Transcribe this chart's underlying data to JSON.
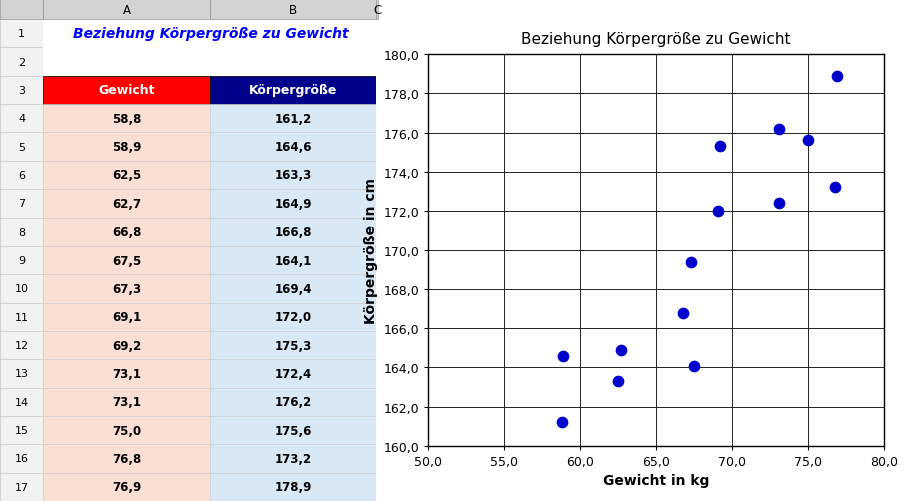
{
  "title_text": "Beziehung Körpergröße zu Gewicht",
  "title_color": "#0000FF",
  "col_a_header": "Gewicht",
  "col_b_header": "Körpergröße",
  "col_a_bg": "#FF0000",
  "col_b_bg": "#00008B",
  "row_a_bg": "#FAE0D4",
  "row_b_bg": "#D9E8F5",
  "gewicht": [
    58.8,
    58.9,
    62.5,
    62.7,
    66.8,
    67.5,
    67.3,
    69.1,
    69.2,
    73.1,
    73.1,
    75.0,
    76.8,
    76.9
  ],
  "koerpergroesse": [
    161.2,
    164.6,
    163.3,
    164.9,
    166.8,
    164.1,
    169.4,
    172.0,
    175.3,
    172.4,
    176.2,
    175.6,
    173.2,
    178.9
  ],
  "chart_title": "Beziehung Körpergröße zu Gewicht",
  "xlabel": "Gewicht in kg",
  "ylabel": "Körpergröße in cm",
  "xlim": [
    50.0,
    80.0
  ],
  "ylim": [
    160.0,
    180.0
  ],
  "xticks": [
    50.0,
    55.0,
    60.0,
    65.0,
    70.0,
    75.0,
    80.0
  ],
  "yticks": [
    160.0,
    162.0,
    164.0,
    166.0,
    168.0,
    170.0,
    172.0,
    174.0,
    176.0,
    178.0,
    180.0
  ],
  "dot_color": "#0000CD",
  "dot_size": 55,
  "col_header_letters": [
    "A",
    "B",
    "C"
  ],
  "col_header_bg": "#D3D3D3",
  "row_border_color": "#AAAAAA",
  "fig_width": 9.11,
  "fig_height": 5.02
}
